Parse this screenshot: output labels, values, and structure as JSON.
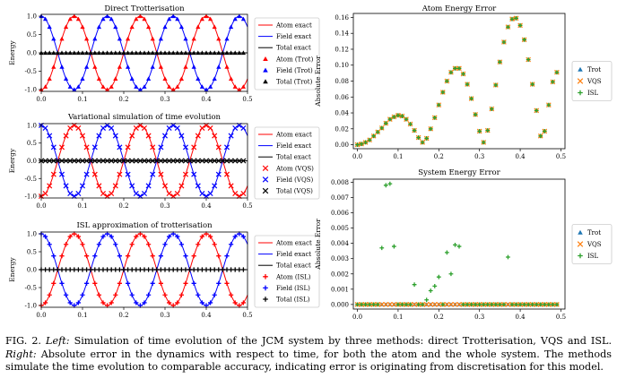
{
  "caption": {
    "label": "FIG. 2.",
    "left_label": "Left:",
    "left_text": "Simulation of time evolution of the JCM system by three methods: direct Trotterisation, VQS and ISL.",
    "right_label": "Right:",
    "right_text": "Absolute error in the dynamics with respect to time, for both the atom and the whole system. The methods simulate the time evolution to comparable accuracy, indicating error is originating from discretisation for this model."
  },
  "colors": {
    "atom": "#ff0000",
    "field": "#0000ff",
    "total": "#000000",
    "trot": "#1f77b4",
    "vqs": "#ff7f0e",
    "isl": "#2ca02c"
  },
  "chart_data": [
    {
      "type": "line",
      "title": "Direct Trotterisation",
      "ylabel": "Energy",
      "xlim": [
        0.0,
        0.5
      ],
      "ylim": [
        -1.05,
        1.05
      ],
      "xticks": [
        "0.0",
        "0.1",
        "0.2",
        "0.3",
        "0.4",
        "0.5"
      ],
      "yticks": [
        "1.0",
        "0.5",
        "0.0",
        "-0.5",
        "-1.0"
      ],
      "legend_position": "outside-right",
      "series": [
        {
          "name": "Atom exact",
          "kind": "line",
          "color": "#ff0000",
          "formula": "-cos(2*pi*x/0.16)"
        },
        {
          "name": "Field exact",
          "kind": "line",
          "color": "#0000ff",
          "formula": "cos(2*pi*x/0.16)"
        },
        {
          "name": "Total exact",
          "kind": "line",
          "color": "#000000",
          "formula": "0"
        },
        {
          "name": "Atom (Trot)",
          "kind": "marker",
          "marker": "triangle",
          "color": "#ff0000",
          "points": "50 samples, x 0 to 0.49"
        },
        {
          "name": "Field (Trot)",
          "kind": "marker",
          "marker": "triangle",
          "color": "#0000ff",
          "points": "50 samples, x 0 to 0.49"
        },
        {
          "name": "Total (Trot)",
          "kind": "marker",
          "marker": "triangle",
          "color": "#000000",
          "points": "50 samples, x 0 to 0.49"
        }
      ]
    },
    {
      "type": "line",
      "title": "Variational simulation of time evolution",
      "ylabel": "Energy",
      "xlim": [
        0.0,
        0.5
      ],
      "ylim": [
        -1.05,
        1.05
      ],
      "xticks": [
        "0.0",
        "0.1",
        "0.2",
        "0.3",
        "0.4",
        "0.5"
      ],
      "yticks": [
        "1.0",
        "0.5",
        "0.0",
        "-0.5",
        "-1.0"
      ],
      "legend_position": "outside-right",
      "series": [
        {
          "name": "Atom exact",
          "kind": "line",
          "color": "#ff0000"
        },
        {
          "name": "Field exact",
          "kind": "line",
          "color": "#0000ff"
        },
        {
          "name": "Total exact",
          "kind": "line",
          "color": "#000000"
        },
        {
          "name": "Atom (VQS)",
          "kind": "marker",
          "marker": "x",
          "color": "#ff0000"
        },
        {
          "name": "Field (VQS)",
          "kind": "marker",
          "marker": "x",
          "color": "#0000ff"
        },
        {
          "name": "Total (VQS)",
          "kind": "marker",
          "marker": "x",
          "color": "#000000"
        }
      ]
    },
    {
      "type": "line",
      "title": "ISL approximation of trotterisation",
      "ylabel": "Energy",
      "xlim": [
        0.0,
        0.5
      ],
      "ylim": [
        -1.05,
        1.05
      ],
      "xticks": [
        "0.0",
        "0.1",
        "0.2",
        "0.3",
        "0.4",
        "0.5"
      ],
      "yticks": [
        "1.0",
        "0.5",
        "0.0",
        "-0.5",
        "-1.0"
      ],
      "legend_position": "outside-right",
      "series": [
        {
          "name": "Atom exact",
          "kind": "line",
          "color": "#ff0000"
        },
        {
          "name": "Field exact",
          "kind": "line",
          "color": "#0000ff"
        },
        {
          "name": "Total exact",
          "kind": "line",
          "color": "#000000"
        },
        {
          "name": "Atom (ISL)",
          "kind": "marker",
          "marker": "plus",
          "color": "#ff0000"
        },
        {
          "name": "Field (ISL)",
          "kind": "marker",
          "marker": "plus",
          "color": "#0000ff"
        },
        {
          "name": "Total (ISL)",
          "kind": "marker",
          "marker": "plus",
          "color": "#000000"
        }
      ]
    },
    {
      "type": "scatter",
      "title": "Atom Energy Error",
      "ylabel": "Absolute Error",
      "xlim": [
        -0.01,
        0.51
      ],
      "ylim": [
        -0.005,
        0.165
      ],
      "xticks": [
        "0.0",
        "0.1",
        "0.2",
        "0.3",
        "0.4",
        "0.5"
      ],
      "yticks": [
        "0.16",
        "0.14",
        "0.12",
        "0.10",
        "0.08",
        "0.06",
        "0.04",
        "0.02",
        "0.00"
      ],
      "legend_position": "outside-right",
      "x": [
        0.0,
        0.01,
        0.02,
        0.03,
        0.04,
        0.05,
        0.06,
        0.07,
        0.08,
        0.09,
        0.1,
        0.11,
        0.12,
        0.13,
        0.14,
        0.15,
        0.16,
        0.17,
        0.18,
        0.19,
        0.2,
        0.21,
        0.22,
        0.23,
        0.24,
        0.25,
        0.26,
        0.27,
        0.28,
        0.29,
        0.3,
        0.31,
        0.32,
        0.33,
        0.34,
        0.35,
        0.36,
        0.37,
        0.38,
        0.39,
        0.4,
        0.41,
        0.42,
        0.43,
        0.44,
        0.45,
        0.46,
        0.47,
        0.48,
        0.49
      ],
      "series": [
        {
          "name": "Trot",
          "marker": "triangle",
          "color": "#1f77b4",
          "values": [
            0.0,
            0.001,
            0.003,
            0.006,
            0.011,
            0.016,
            0.021,
            0.027,
            0.032,
            0.035,
            0.037,
            0.036,
            0.032,
            0.026,
            0.018,
            0.009,
            0.003,
            0.008,
            0.02,
            0.034,
            0.05,
            0.066,
            0.08,
            0.091,
            0.096,
            0.096,
            0.089,
            0.076,
            0.058,
            0.038,
            0.017,
            0.003,
            0.018,
            0.045,
            0.075,
            0.104,
            0.129,
            0.148,
            0.158,
            0.159,
            0.15,
            0.132,
            0.107,
            0.076,
            0.043,
            0.011,
            0.017,
            0.05,
            0.079,
            0.091
          ]
        },
        {
          "name": "VQS",
          "marker": "x",
          "color": "#ff7f0e",
          "values": [
            0.0,
            0.001,
            0.003,
            0.006,
            0.011,
            0.016,
            0.021,
            0.027,
            0.032,
            0.035,
            0.037,
            0.036,
            0.032,
            0.026,
            0.018,
            0.009,
            0.003,
            0.008,
            0.02,
            0.034,
            0.05,
            0.066,
            0.08,
            0.091,
            0.096,
            0.096,
            0.089,
            0.076,
            0.058,
            0.038,
            0.017,
            0.003,
            0.018,
            0.045,
            0.075,
            0.104,
            0.129,
            0.148,
            0.158,
            0.159,
            0.15,
            0.132,
            0.107,
            0.076,
            0.043,
            0.011,
            0.017,
            0.05,
            0.079,
            0.091
          ]
        },
        {
          "name": "ISL",
          "marker": "plus",
          "color": "#2ca02c",
          "values": [
            0.0,
            0.001,
            0.003,
            0.006,
            0.011,
            0.016,
            0.021,
            0.027,
            0.032,
            0.035,
            0.037,
            0.036,
            0.032,
            0.026,
            0.018,
            0.009,
            0.003,
            0.008,
            0.02,
            0.034,
            0.05,
            0.066,
            0.08,
            0.091,
            0.096,
            0.096,
            0.089,
            0.076,
            0.058,
            0.038,
            0.017,
            0.003,
            0.018,
            0.045,
            0.075,
            0.104,
            0.129,
            0.148,
            0.158,
            0.159,
            0.15,
            0.132,
            0.107,
            0.076,
            0.043,
            0.011,
            0.017,
            0.05,
            0.079,
            0.091
          ]
        }
      ]
    },
    {
      "type": "scatter",
      "title": "System Energy Error",
      "ylabel": "Absolute Error",
      "xlim": [
        -0.01,
        0.51
      ],
      "ylim": [
        -0.0003,
        0.0082
      ],
      "xticks": [
        "0.0",
        "0.1",
        "0.2",
        "0.3",
        "0.4",
        "0.5"
      ],
      "yticks": [
        "0.008",
        "0.007",
        "0.006",
        "0.005",
        "0.004",
        "0.003",
        "0.002",
        "0.001",
        "0.000"
      ],
      "legend_position": "outside-right",
      "x": [
        0.0,
        0.01,
        0.02,
        0.03,
        0.04,
        0.05,
        0.06,
        0.07,
        0.08,
        0.09,
        0.1,
        0.11,
        0.12,
        0.13,
        0.14,
        0.15,
        0.16,
        0.17,
        0.18,
        0.19,
        0.2,
        0.21,
        0.22,
        0.23,
        0.24,
        0.25,
        0.26,
        0.27,
        0.28,
        0.29,
        0.3,
        0.31,
        0.32,
        0.33,
        0.34,
        0.35,
        0.36,
        0.37,
        0.38,
        0.39,
        0.4,
        0.41,
        0.42,
        0.43,
        0.44,
        0.45,
        0.46,
        0.47,
        0.48,
        0.49
      ],
      "series": [
        {
          "name": "Trot",
          "marker": "triangle",
          "color": "#1f77b4",
          "values": "all 0.0000"
        },
        {
          "name": "VQS",
          "marker": "x",
          "color": "#ff7f0e",
          "values": "all 0.0000"
        },
        {
          "name": "ISL",
          "marker": "plus",
          "color": "#2ca02c",
          "x_nonzero": [
            0.06,
            0.07,
            0.08,
            0.09,
            0.14,
            0.17,
            0.18,
            0.19,
            0.2,
            0.22,
            0.23,
            0.24,
            0.25,
            0.37
          ],
          "values_nonzero": [
            0.0037,
            0.0078,
            0.0079,
            0.0038,
            0.0013,
            0.0003,
            0.0009,
            0.0012,
            0.0018,
            0.0034,
            0.002,
            0.0039,
            0.0038,
            0.0031
          ]
        }
      ]
    }
  ]
}
